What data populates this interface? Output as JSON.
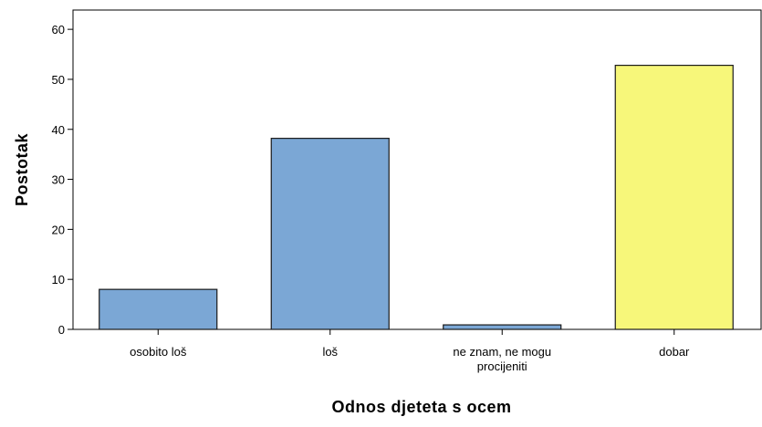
{
  "chart_data": {
    "type": "bar",
    "categories": [
      [
        "osobito loš"
      ],
      [
        "loš"
      ],
      [
        "ne znam, ne mogu",
        "procijeniti"
      ],
      [
        "dobar"
      ]
    ],
    "values": [
      8.0,
      38.2,
      0.9,
      52.8
    ],
    "bar_colors": [
      "#7BA7D5",
      "#7BA7D5",
      "#7BA7D5",
      "#F7F77A"
    ],
    "xlabel": "Odnos djeteta s ocem",
    "ylabel": "Postotak",
    "ylim": [
      0,
      62
    ],
    "yticks": [
      0,
      10,
      20,
      30,
      40,
      50,
      60
    ],
    "grid": false
  }
}
